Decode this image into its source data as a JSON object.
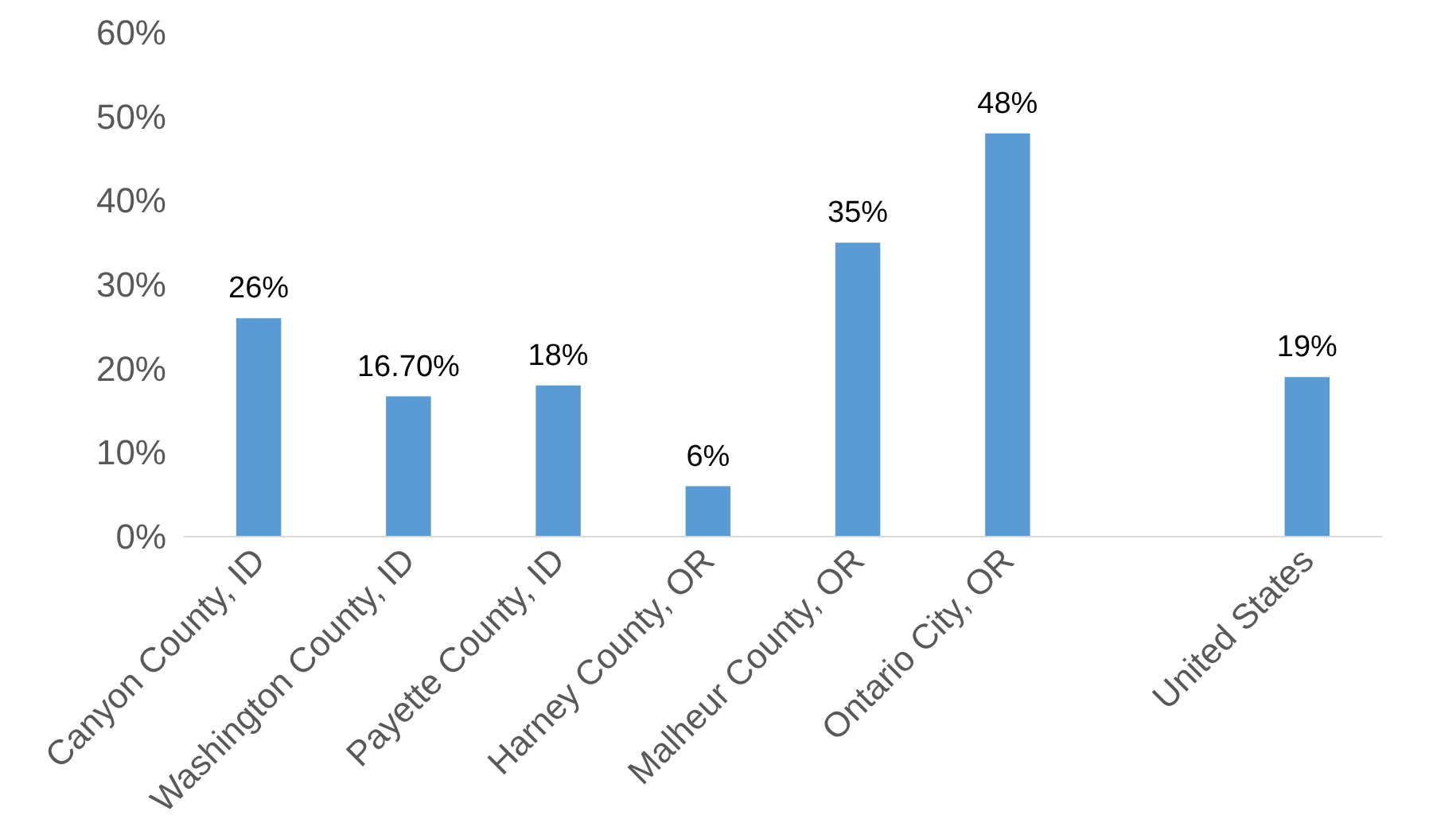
{
  "chart_data": {
    "type": "bar",
    "categories": [
      "Canyon County, ID",
      "Washington County, ID",
      "Payette County, ID",
      "Harney County, OR",
      "Malheur County, OR",
      "Ontario City, OR",
      null,
      "United States"
    ],
    "values": [
      26,
      16.7,
      18,
      6,
      35,
      48,
      null,
      19
    ],
    "value_labels": [
      "26%",
      "16.70%",
      "18%",
      "6%",
      "35%",
      "48%",
      null,
      "19%"
    ],
    "color": "#5b9bd5",
    "ylim": [
      0,
      60
    ],
    "yticks": [
      {
        "value": 0,
        "label": "0%"
      },
      {
        "value": 10,
        "label": "10%"
      },
      {
        "value": 20,
        "label": "20%"
      },
      {
        "value": 30,
        "label": "30%"
      },
      {
        "value": 40,
        "label": "40%"
      },
      {
        "value": 50,
        "label": "50%"
      },
      {
        "value": 60,
        "label": "60%"
      }
    ],
    "grid": false
  }
}
